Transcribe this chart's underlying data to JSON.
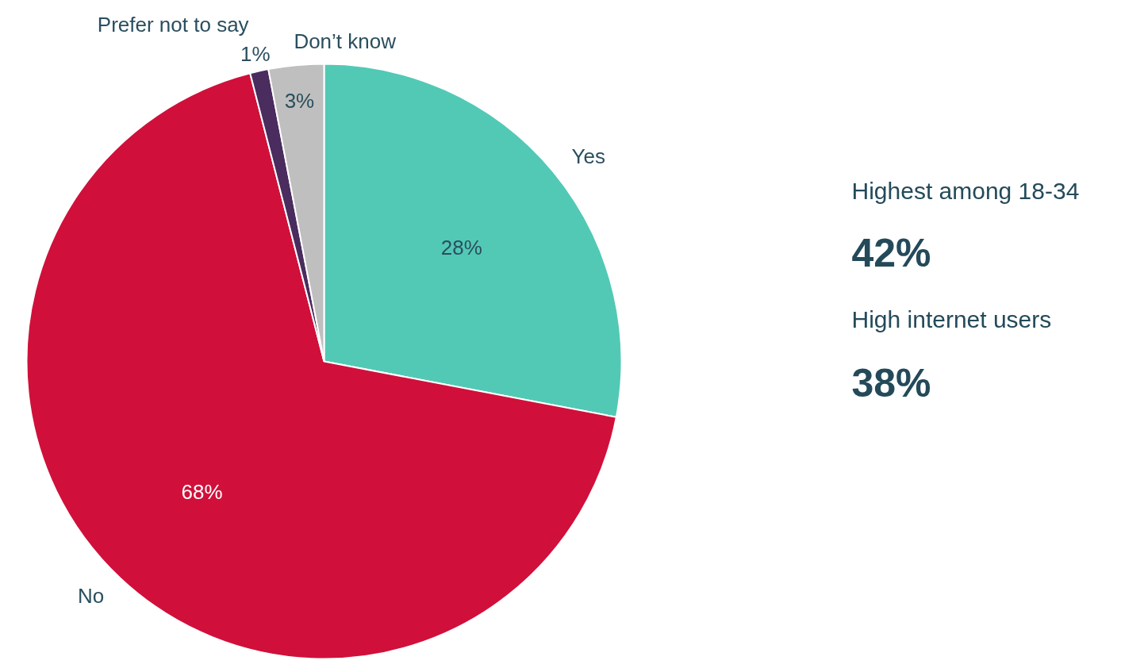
{
  "chart_data": {
    "type": "pie",
    "categories": [
      "Yes",
      "No",
      "Prefer not to say",
      "Don’t know"
    ],
    "values": [
      28,
      68,
      1,
      3
    ],
    "colors": [
      "#52c9b5",
      "#d0103a",
      "#4a2c5e",
      "#bfbfbf"
    ],
    "value_labels": [
      "28%",
      "68%",
      "1%",
      "3%"
    ],
    "annotations": [
      "Highest among 18-34",
      "42%",
      "High internet users",
      "38%"
    ]
  }
}
